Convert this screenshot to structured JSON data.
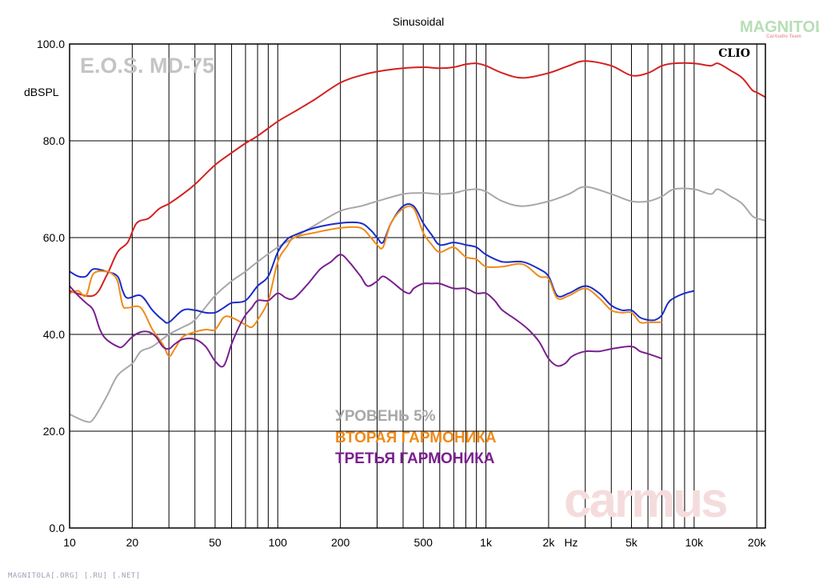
{
  "chart_data": {
    "type": "line",
    "title": "Sinusoidal",
    "ylabel": "dBSPL",
    "xlabel": "Hz",
    "x_scale": "log",
    "xlim": [
      10,
      22000
    ],
    "ylim": [
      0,
      100
    ],
    "grid": true,
    "yticks": [
      {
        "value": 0,
        "label": "0.0"
      },
      {
        "value": 20,
        "label": "20.0"
      },
      {
        "value": 40,
        "label": "40.0"
      },
      {
        "value": 60,
        "label": "60.0"
      },
      {
        "value": 80,
        "label": "80.0"
      },
      {
        "value": 100,
        "label": "100.0"
      }
    ],
    "xticks": [
      {
        "value": 10,
        "label": "10"
      },
      {
        "value": 20,
        "label": "20"
      },
      {
        "value": 50,
        "label": "50"
      },
      {
        "value": 100,
        "label": "100"
      },
      {
        "value": 200,
        "label": "200"
      },
      {
        "value": 500,
        "label": "500"
      },
      {
        "value": 1000,
        "label": "1k"
      },
      {
        "value": 2000,
        "label": "2k"
      },
      {
        "value": 5000,
        "label": "5k"
      },
      {
        "value": 10000,
        "label": "10k"
      },
      {
        "value": 20000,
        "label": "20k"
      }
    ],
    "series": [
      {
        "color": "#d42020",
        "points": [
          [
            10,
            49
          ],
          [
            13,
            48
          ],
          [
            15,
            52
          ],
          [
            17,
            57
          ],
          [
            19,
            59
          ],
          [
            21,
            63
          ],
          [
            24,
            64
          ],
          [
            27,
            66
          ],
          [
            30,
            67
          ],
          [
            35,
            69
          ],
          [
            40,
            71
          ],
          [
            50,
            75
          ],
          [
            60,
            77.5
          ],
          [
            70,
            79.5
          ],
          [
            80,
            81
          ],
          [
            100,
            84
          ],
          [
            120,
            86
          ],
          [
            150,
            88.5
          ],
          [
            200,
            92
          ],
          [
            250,
            93.5
          ],
          [
            300,
            94.3
          ],
          [
            400,
            95
          ],
          [
            500,
            95.2
          ],
          [
            600,
            95
          ],
          [
            700,
            95.2
          ],
          [
            800,
            95.8
          ],
          [
            900,
            96
          ],
          [
            1000,
            95.5
          ],
          [
            1200,
            94
          ],
          [
            1500,
            93
          ],
          [
            2000,
            94
          ],
          [
            2500,
            95.5
          ],
          [
            3000,
            96.5
          ],
          [
            4000,
            95.5
          ],
          [
            5000,
            93.5
          ],
          [
            6000,
            94
          ],
          [
            7000,
            95.5
          ],
          [
            8000,
            96
          ],
          [
            10000,
            96
          ],
          [
            12000,
            95.5
          ],
          [
            13000,
            96
          ],
          [
            15000,
            94.5
          ],
          [
            17000,
            93
          ],
          [
            19000,
            90.5
          ],
          [
            20000,
            90
          ],
          [
            22000,
            89
          ]
        ]
      },
      {
        "name": "УРОВЕНЬ 5%",
        "color": "#a8a8a8",
        "points": [
          [
            10,
            23.5
          ],
          [
            12,
            22
          ],
          [
            13,
            22.5
          ],
          [
            15,
            27
          ],
          [
            17,
            31.5
          ],
          [
            20,
            34
          ],
          [
            22,
            36.5
          ],
          [
            25,
            37.5
          ],
          [
            30,
            40
          ],
          [
            35,
            41.5
          ],
          [
            40,
            43
          ],
          [
            50,
            48
          ],
          [
            60,
            51
          ],
          [
            70,
            53
          ],
          [
            80,
            55
          ],
          [
            100,
            58
          ],
          [
            120,
            60
          ],
          [
            150,
            62.5
          ],
          [
            200,
            65.5
          ],
          [
            250,
            66.5
          ],
          [
            300,
            67.5
          ],
          [
            400,
            69
          ],
          [
            500,
            69.2
          ],
          [
            600,
            69
          ],
          [
            700,
            69.2
          ],
          [
            800,
            69.8
          ],
          [
            900,
            70
          ],
          [
            1000,
            69.5
          ],
          [
            1200,
            67.5
          ],
          [
            1500,
            66.5
          ],
          [
            2000,
            67.5
          ],
          [
            2500,
            69
          ],
          [
            3000,
            70.5
          ],
          [
            4000,
            69
          ],
          [
            5000,
            67.5
          ],
          [
            6000,
            67.5
          ],
          [
            7000,
            68.5
          ],
          [
            8000,
            70
          ],
          [
            10000,
            70
          ],
          [
            12000,
            69
          ],
          [
            13000,
            70
          ],
          [
            15000,
            68.5
          ],
          [
            17000,
            67
          ],
          [
            19000,
            64.5
          ],
          [
            20000,
            64
          ],
          [
            22000,
            63.5
          ]
        ]
      },
      {
        "color": "#1a2cc8",
        "points": [
          [
            10,
            53
          ],
          [
            11,
            52
          ],
          [
            12,
            52
          ],
          [
            13,
            53.5
          ],
          [
            15,
            53
          ],
          [
            17,
            52
          ],
          [
            18,
            49
          ],
          [
            19,
            47.5
          ],
          [
            22,
            48
          ],
          [
            25,
            45
          ],
          [
            28,
            43
          ],
          [
            30,
            42.5
          ],
          [
            35,
            45
          ],
          [
            40,
            45
          ],
          [
            45,
            44.5
          ],
          [
            50,
            44.5
          ],
          [
            55,
            45.5
          ],
          [
            60,
            46.5
          ],
          [
            70,
            47
          ],
          [
            80,
            50
          ],
          [
            90,
            52
          ],
          [
            100,
            57
          ],
          [
            110,
            59.5
          ],
          [
            120,
            60.5
          ],
          [
            150,
            62
          ],
          [
            200,
            63
          ],
          [
            250,
            63
          ],
          [
            280,
            61.5
          ],
          [
            300,
            60
          ],
          [
            320,
            59
          ],
          [
            350,
            63
          ],
          [
            400,
            66.5
          ],
          [
            450,
            66.5
          ],
          [
            500,
            63
          ],
          [
            550,
            60.5
          ],
          [
            600,
            58.5
          ],
          [
            700,
            59
          ],
          [
            800,
            58.5
          ],
          [
            900,
            58
          ],
          [
            1000,
            56.5
          ],
          [
            1200,
            55
          ],
          [
            1500,
            55
          ],
          [
            1800,
            53.5
          ],
          [
            2000,
            52
          ],
          [
            2200,
            48
          ],
          [
            2500,
            48.5
          ],
          [
            3000,
            50
          ],
          [
            3500,
            48.5
          ],
          [
            4000,
            46
          ],
          [
            4500,
            45
          ],
          [
            5000,
            45
          ],
          [
            5500,
            43.5
          ],
          [
            6000,
            43
          ],
          [
            6500,
            43
          ],
          [
            7000,
            44
          ],
          [
            7500,
            46.5
          ],
          [
            8000,
            47.5
          ],
          [
            9000,
            48.5
          ],
          [
            10000,
            49
          ]
        ]
      },
      {
        "name": "ВТОРАЯ ГАРМОНИКА",
        "color": "#f08a18",
        "points": [
          [
            10,
            48.5
          ],
          [
            11,
            49
          ],
          [
            12,
            48
          ],
          [
            13,
            52.5
          ],
          [
            15,
            53
          ],
          [
            16,
            52.5
          ],
          [
            17,
            51
          ],
          [
            18,
            46
          ],
          [
            19,
            45.5
          ],
          [
            22,
            45.5
          ],
          [
            25,
            41
          ],
          [
            28,
            38
          ],
          [
            30,
            35.5
          ],
          [
            32,
            37
          ],
          [
            35,
            39.5
          ],
          [
            40,
            40.5
          ],
          [
            45,
            41
          ],
          [
            50,
            41
          ],
          [
            55,
            43.5
          ],
          [
            60,
            43.5
          ],
          [
            70,
            42
          ],
          [
            75,
            41.5
          ],
          [
            80,
            43
          ],
          [
            90,
            47
          ],
          [
            100,
            55
          ],
          [
            110,
            58
          ],
          [
            120,
            60
          ],
          [
            150,
            61
          ],
          [
            200,
            62
          ],
          [
            250,
            62
          ],
          [
            280,
            60
          ],
          [
            300,
            58.5
          ],
          [
            320,
            58
          ],
          [
            350,
            63
          ],
          [
            400,
            66
          ],
          [
            450,
            66
          ],
          [
            500,
            61
          ],
          [
            550,
            58.5
          ],
          [
            600,
            57
          ],
          [
            700,
            58
          ],
          [
            800,
            56
          ],
          [
            900,
            55.5
          ],
          [
            1000,
            54
          ],
          [
            1200,
            54
          ],
          [
            1500,
            54.5
          ],
          [
            1800,
            52
          ],
          [
            2000,
            51.5
          ],
          [
            2200,
            47.5
          ],
          [
            2500,
            48
          ],
          [
            3000,
            49.5
          ],
          [
            3500,
            47.5
          ],
          [
            4000,
            45
          ],
          [
            4500,
            44.5
          ],
          [
            5000,
            44.5
          ],
          [
            5500,
            42.5
          ],
          [
            6000,
            42.5
          ],
          [
            6500,
            42.5
          ],
          [
            7000,
            42.5
          ]
        ]
      },
      {
        "name": "ТРЕТЬЯ ГАРМОНИКА",
        "color": "#7a1f8e",
        "points": [
          [
            10,
            50
          ],
          [
            11,
            48
          ],
          [
            12,
            46.5
          ],
          [
            13,
            45
          ],
          [
            14,
            41
          ],
          [
            15,
            39
          ],
          [
            17,
            37.5
          ],
          [
            18,
            37.5
          ],
          [
            20,
            39.5
          ],
          [
            22,
            40.5
          ],
          [
            24,
            40.5
          ],
          [
            26,
            39.5
          ],
          [
            28,
            37.5
          ],
          [
            30,
            37
          ],
          [
            32,
            38
          ],
          [
            35,
            39
          ],
          [
            40,
            39
          ],
          [
            45,
            37.5
          ],
          [
            50,
            34.5
          ],
          [
            55,
            33.5
          ],
          [
            60,
            38
          ],
          [
            65,
            41.5
          ],
          [
            70,
            44
          ],
          [
            75,
            45.5
          ],
          [
            80,
            47
          ],
          [
            90,
            47
          ],
          [
            100,
            48.5
          ],
          [
            110,
            47.5
          ],
          [
            120,
            47.5
          ],
          [
            140,
            50.5
          ],
          [
            160,
            53.5
          ],
          [
            180,
            55
          ],
          [
            200,
            56.5
          ],
          [
            220,
            55
          ],
          [
            250,
            52
          ],
          [
            270,
            50
          ],
          [
            300,
            51
          ],
          [
            320,
            52
          ],
          [
            350,
            51
          ],
          [
            400,
            49
          ],
          [
            430,
            48.5
          ],
          [
            450,
            49.5
          ],
          [
            500,
            50.5
          ],
          [
            550,
            50.5
          ],
          [
            600,
            50.5
          ],
          [
            700,
            49.5
          ],
          [
            800,
            49.5
          ],
          [
            900,
            48.5
          ],
          [
            1000,
            48.5
          ],
          [
            1100,
            47
          ],
          [
            1200,
            45
          ],
          [
            1400,
            43
          ],
          [
            1600,
            41
          ],
          [
            1800,
            38.5
          ],
          [
            2000,
            35
          ],
          [
            2200,
            33.5
          ],
          [
            2400,
            34
          ],
          [
            2600,
            35.5
          ],
          [
            3000,
            36.5
          ],
          [
            3500,
            36.5
          ],
          [
            4000,
            37
          ],
          [
            5000,
            37.5
          ],
          [
            5500,
            36.5
          ],
          [
            6000,
            36
          ],
          [
            7000,
            35
          ]
        ]
      }
    ],
    "legend": [
      "УРОВЕНЬ 5%",
      "ВТОРАЯ ГАРМОНИКА",
      "ТРЕТЬЯ ГАРМОНИКА"
    ],
    "legend_placement": "bottom-center"
  },
  "watermarks": {
    "model": "E.O.S. MD-75",
    "clio": "CLIO",
    "brand_top": "MAGNITOLA",
    "brand_sub": "CarAudio Team",
    "carmus": "carmus",
    "footer": "MAGNITOLA[.ORG] [.RU] [.NET]"
  }
}
